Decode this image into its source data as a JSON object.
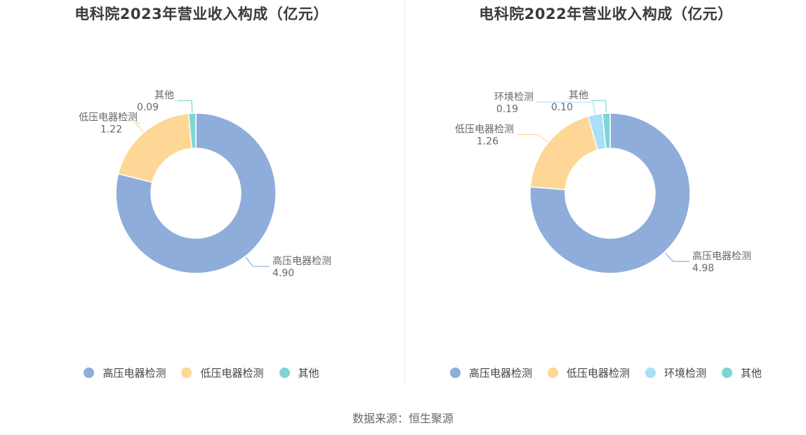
{
  "colors": {
    "高压电器检测": "#8eadda",
    "低压电器检测": "#fed796",
    "环境检测": "#a9dff7",
    "其他": "#7fd5d6"
  },
  "source": "数据来源：恒生聚源",
  "chart_data": [
    {
      "type": "pie",
      "title": "电科院2023年营业收入构成（亿元）",
      "categories": [
        "高压电器检测",
        "低压电器检测",
        "其他"
      ],
      "values": [
        4.9,
        1.22,
        0.09
      ],
      "value_labels": [
        "4.90",
        "1.22",
        "0.09"
      ],
      "legend": [
        "高压电器检测",
        "低压电器检测",
        "其他"
      ],
      "legend_position": "bottom"
    },
    {
      "type": "pie",
      "title": "电科院2022年营业收入构成（亿元）",
      "categories": [
        "高压电器检测",
        "低压电器检测",
        "环境检测",
        "其他"
      ],
      "values": [
        4.98,
        1.26,
        0.19,
        0.1
      ],
      "value_labels": [
        "4.98",
        "1.26",
        "0.19",
        "0.10"
      ],
      "legend": [
        "高压电器检测",
        "低压电器检测",
        "环境检测",
        "其他"
      ],
      "legend_position": "bottom"
    }
  ]
}
